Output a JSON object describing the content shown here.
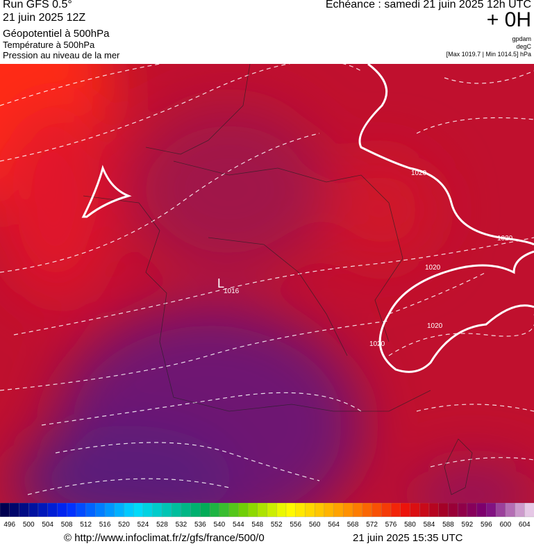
{
  "header": {
    "left": [
      "Run GFS 0.5°",
      "21 juin 2025 12Z",
      "Géopotentiel à 500hPa",
      "Température à 500hPa",
      "Pression au niveau de la mer"
    ],
    "right": {
      "title": "Echéance : samedi 21 juin 2025 12h UTC",
      "step": "+ 0H",
      "unit1": "gpdam",
      "unit2": "degC",
      "range": "[Max 1019.7 | Min 1014.5] hPa"
    }
  },
  "map": {
    "low": "L",
    "labels": [
      "1016",
      "1020",
      "1020",
      "1020",
      "1020",
      "1020"
    ]
  },
  "colorbar": {
    "labels": [
      496,
      500,
      504,
      508,
      512,
      516,
      520,
      524,
      528,
      532,
      536,
      540,
      544,
      548,
      552,
      556,
      560,
      564,
      568,
      572,
      576,
      580,
      584,
      588,
      592,
      596,
      600,
      604
    ]
  },
  "footer": {
    "url": "© http://www.infoclimat.fr/z/gfs/france/500/0",
    "date": "21 juin 2025 15:35 UTC"
  }
}
